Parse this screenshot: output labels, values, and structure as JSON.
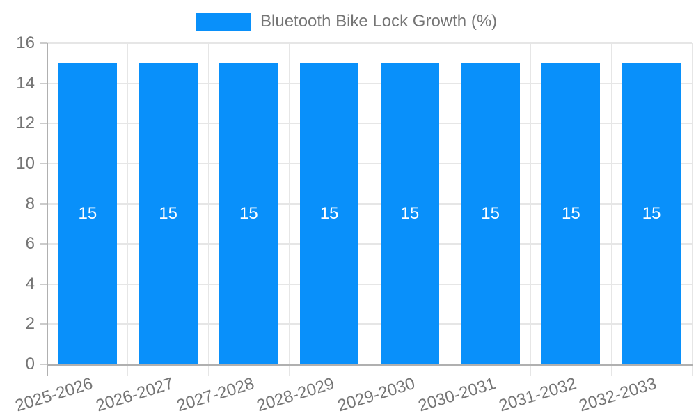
{
  "chart_data": {
    "type": "bar",
    "title": "Bluetooth Bike Lock Growth (%)",
    "categories": [
      "2025-2026",
      "2026-2027",
      "2027-2028",
      "2028-2029",
      "2029-2030",
      "2030-2031",
      "2031-2032",
      "2032-2033"
    ],
    "series": [
      {
        "name": "Bluetooth Bike Lock Growth (%)",
        "values": [
          15,
          15,
          15,
          15,
          15,
          15,
          15,
          15
        ]
      }
    ],
    "ylim": [
      0,
      16
    ],
    "yticks": [
      0,
      2,
      4,
      6,
      8,
      10,
      12,
      14,
      16
    ],
    "xlabel": "",
    "ylabel": "",
    "grid": true,
    "legend_position": "top",
    "bar_value_labels_inside": true,
    "colors": {
      "bar": "#0990fa",
      "bar_label": "#ffffff",
      "text": "#757575",
      "grid": "#e6e6e6",
      "tick": "#cccccc",
      "axis": "#b0b0b0",
      "background": "#ffffff"
    }
  }
}
